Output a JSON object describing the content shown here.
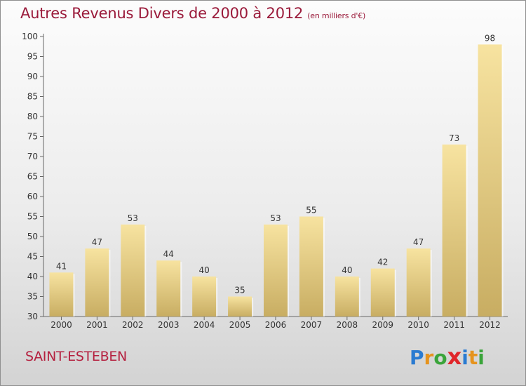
{
  "title": "Autres Revenus Divers de 2000 à 2012",
  "subtitle": "(en milliers d'€)",
  "commune": "SAINT-ESTEBEN",
  "logo": {
    "letters": [
      "P",
      "r",
      "o",
      "x",
      "i",
      "t",
      "i"
    ],
    "colors": [
      "#2a7bd1",
      "#e6931d",
      "#3aa43a",
      "#e0262a",
      "#2a7bd1",
      "#e6931d",
      "#3aa43a"
    ]
  },
  "colors": {
    "title": "#9a1a3a",
    "bar_light": "#f7e3a0",
    "bar_dark": "#c8ad62"
  },
  "chart_data": {
    "type": "bar",
    "title": "Autres Revenus Divers de 2000 à 2012",
    "subtitle": "(en milliers d'€)",
    "categories": [
      "2000",
      "2001",
      "2002",
      "2003",
      "2004",
      "2005",
      "2006",
      "2007",
      "2008",
      "2009",
      "2010",
      "2011",
      "2012"
    ],
    "values": [
      41,
      47,
      53,
      44,
      40,
      35,
      53,
      55,
      40,
      42,
      47,
      73,
      98
    ],
    "ylim": [
      30,
      100
    ],
    "yticks": [
      30,
      35,
      40,
      45,
      50,
      55,
      60,
      65,
      70,
      75,
      80,
      85,
      90,
      95,
      100
    ],
    "xlabel": "",
    "ylabel": "",
    "grid": false,
    "legend": "none"
  }
}
